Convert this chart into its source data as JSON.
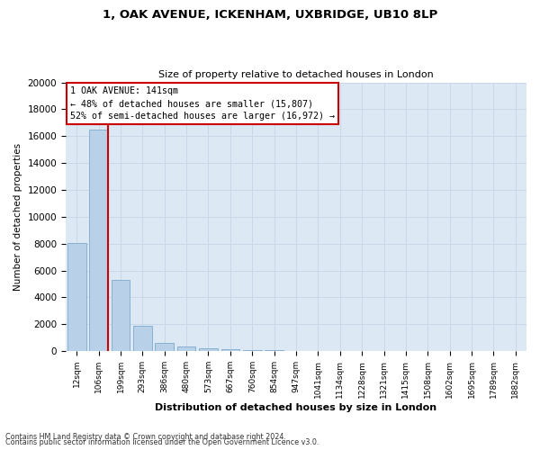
{
  "title": "1, OAK AVENUE, ICKENHAM, UXBRIDGE, UB10 8LP",
  "subtitle": "Size of property relative to detached houses in London",
  "xlabel": "Distribution of detached houses by size in London",
  "ylabel": "Number of detached properties",
  "footnote1": "Contains HM Land Registry data © Crown copyright and database right 2024.",
  "footnote2": "Contains public sector information licensed under the Open Government Licence v3.0.",
  "bar_labels": [
    "12sqm",
    "106sqm",
    "199sqm",
    "293sqm",
    "386sqm",
    "480sqm",
    "573sqm",
    "667sqm",
    "760sqm",
    "854sqm",
    "947sqm",
    "1041sqm",
    "1134sqm",
    "1228sqm",
    "1321sqm",
    "1415sqm",
    "1508sqm",
    "1602sqm",
    "1695sqm",
    "1789sqm",
    "1882sqm"
  ],
  "bar_values": [
    8050,
    16500,
    5300,
    1850,
    620,
    310,
    185,
    120,
    80,
    50,
    35,
    25,
    18,
    13,
    9,
    7,
    5,
    4,
    3,
    2,
    1
  ],
  "bar_color": "#b8d0e8",
  "bar_edge_color": "#8ab0d0",
  "ylim": [
    0,
    20000
  ],
  "yticks": [
    0,
    2000,
    4000,
    6000,
    8000,
    10000,
    12000,
    14000,
    16000,
    18000,
    20000
  ],
  "red_line_bar_index": 1,
  "annotation_title": "1 OAK AVENUE: 141sqm",
  "annotation_line1": "← 48% of detached houses are smaller (15,807)",
  "annotation_line2": "52% of semi-detached houses are larger (16,972) →",
  "annotation_box_color": "#ffffff",
  "annotation_border_color": "#cc0000",
  "grid_color": "#c8d8e8",
  "fig_bg_color": "#ffffff",
  "plot_bg_color": "#dce8f4"
}
